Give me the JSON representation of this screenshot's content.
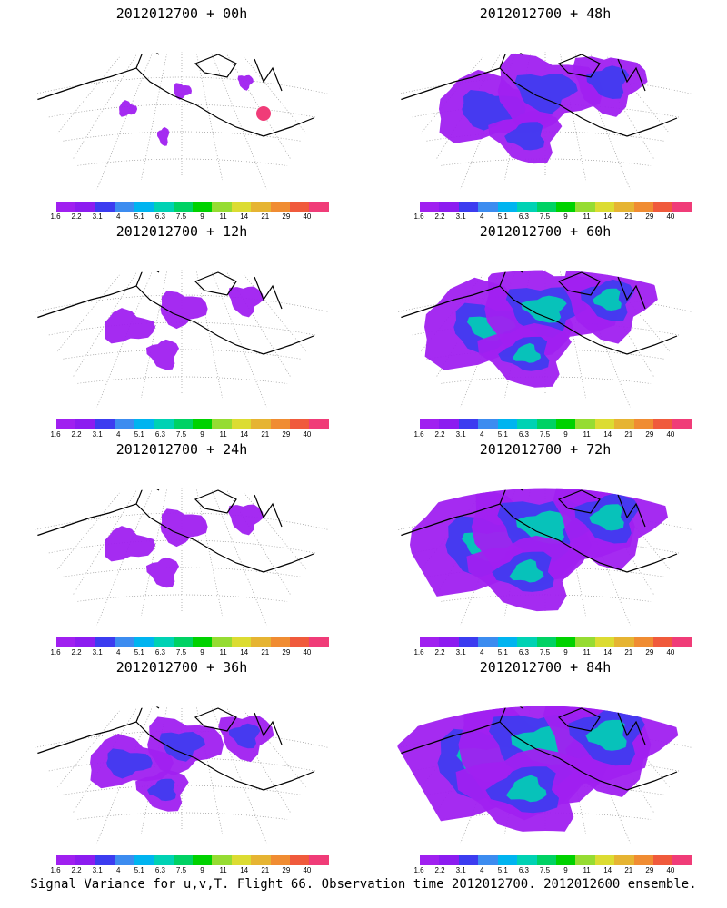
{
  "panels": [
    {
      "title": "2012012700 + 00h",
      "spread": 0
    },
    {
      "title": "2012012700 + 48h",
      "spread": 3
    },
    {
      "title": "2012012700 + 12h",
      "spread": 1
    },
    {
      "title": "2012012700 + 60h",
      "spread": 4
    },
    {
      "title": "2012012700 + 24h",
      "spread": 1
    },
    {
      "title": "2012012700 + 72h",
      "spread": 5
    },
    {
      "title": "2012012700 + 36h",
      "spread": 2
    },
    {
      "title": "2012012700 + 84h",
      "spread": 6
    }
  ],
  "colorbar": {
    "labels": [
      "1.6",
      "2.2",
      "3.1",
      "4",
      "5.1",
      "6.3",
      "7.5",
      "9",
      "11",
      "14",
      "21",
      "29",
      "40"
    ],
    "colors": [
      "#a020f0",
      "#8c1cf0",
      "#3c3cf0",
      "#3c8cf0",
      "#00b4f0",
      "#00d2b4",
      "#00d264",
      "#00d200",
      "#96dc32",
      "#dcdc32",
      "#e6b432",
      "#f08c32",
      "#f05a3c",
      "#f03c78"
    ]
  },
  "footer": "Signal Variance for u,v,T. Flight 66. Observation time 2012012700. 2012012600 ensemble."
}
